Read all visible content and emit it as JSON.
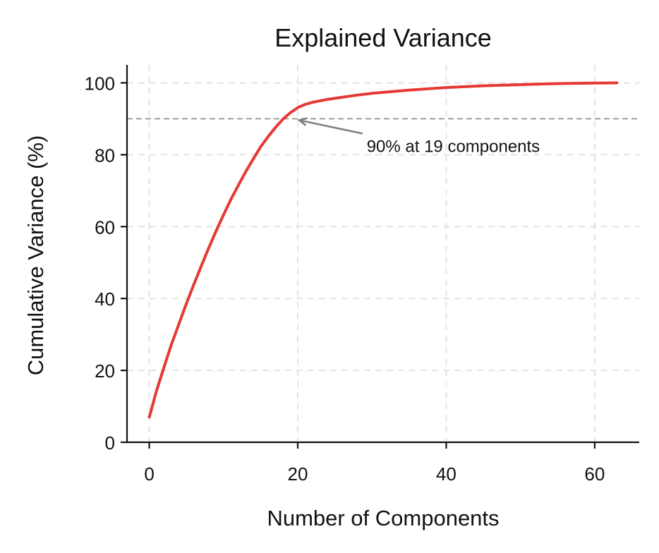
{
  "chart_data": {
    "type": "line",
    "title": "Explained Variance",
    "xlabel": "Number of Components",
    "ylabel": "Cumulative Variance (%)",
    "xlim": [
      -3,
      66
    ],
    "ylim": [
      0,
      105
    ],
    "xticks": [
      0,
      20,
      40,
      60
    ],
    "yticks": [
      0,
      20,
      40,
      60,
      80,
      100
    ],
    "grid": true,
    "series": [
      {
        "color": "#e53935",
        "x": [
          0,
          1,
          2,
          3,
          4,
          5,
          6,
          7,
          8,
          9,
          10,
          11,
          12,
          13,
          14,
          15,
          16,
          17,
          18,
          19,
          20,
          21,
          22,
          24,
          26,
          28,
          30,
          35,
          40,
          45,
          50,
          55,
          60,
          63
        ],
        "y": [
          7.0,
          14.5,
          21.0,
          27.3,
          33.0,
          38.6,
          43.9,
          49.0,
          54.0,
          58.8,
          63.3,
          67.6,
          71.5,
          75.3,
          78.8,
          82.2,
          85.0,
          87.6,
          89.9,
          91.7,
          93.1,
          94.0,
          94.6,
          95.4,
          96.0,
          96.6,
          97.1,
          98.0,
          98.7,
          99.2,
          99.5,
          99.8,
          99.95,
          100.0
        ]
      }
    ],
    "reference_line": {
      "orientation": "horizontal",
      "y": 90,
      "color": "#9e9e9e",
      "style": "dashed"
    },
    "annotation": {
      "text": "90% at 19 components",
      "xy": [
        20,
        90
      ],
      "xytext": [
        29,
        81
      ],
      "arrow_color": "#808080"
    }
  }
}
